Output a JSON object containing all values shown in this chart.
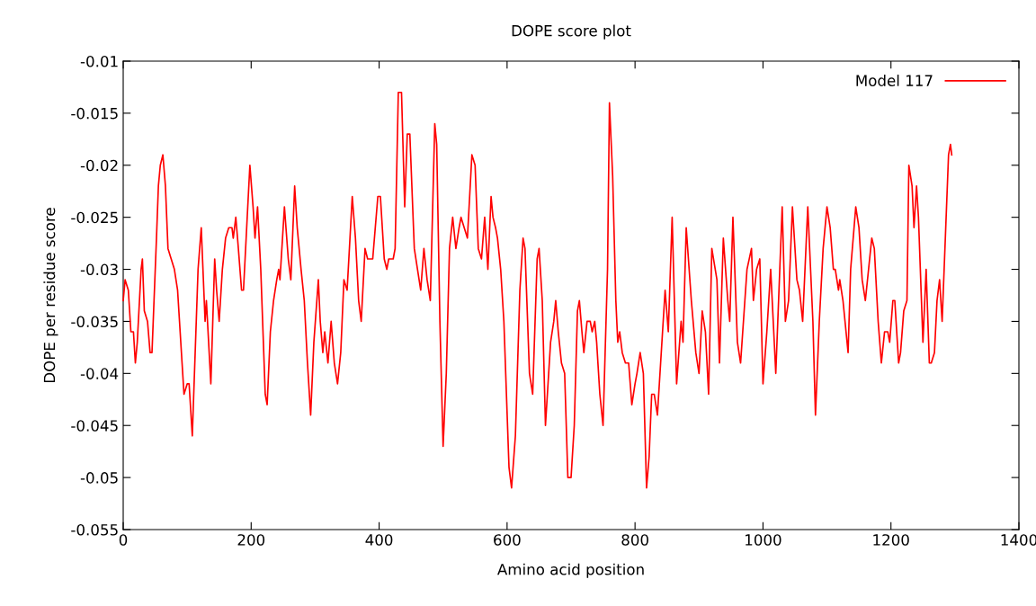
{
  "chart_data": {
    "type": "line",
    "title": "DOPE score plot",
    "xlabel": "Amino acid position",
    "ylabel": "DOPE per residue score",
    "xlim": [
      0,
      1400
    ],
    "xticks": [
      0,
      200,
      400,
      600,
      800,
      1000,
      1200,
      1400
    ],
    "ylim": [
      -0.055,
      -0.01
    ],
    "yticks": [
      -0.055,
      -0.05,
      -0.045,
      -0.04,
      -0.035,
      -0.03,
      -0.025,
      -0.02,
      -0.015,
      -0.01
    ],
    "grid": false,
    "legend": "top right",
    "marker": "none",
    "line_style": "solid",
    "series": [
      {
        "name": "Model 117",
        "color": "#ff0000",
        "x": [
          0,
          3,
          8,
          12,
          16,
          19,
          22,
          28,
          30,
          33,
          38,
          42,
          45,
          52,
          55,
          58,
          62,
          66,
          70,
          75,
          80,
          85,
          92,
          95,
          100,
          103,
          108,
          117,
          122,
          128,
          130,
          137,
          143,
          146,
          150,
          155,
          160,
          165,
          170,
          172,
          176,
          180,
          185,
          188,
          198,
          203,
          206,
          210,
          215,
          222,
          225,
          230,
          235,
          240,
          243,
          245,
          252,
          258,
          262,
          268,
          272,
          278,
          283,
          288,
          293,
          298,
          305,
          308,
          312,
          315,
          320,
          325,
          330,
          335,
          340,
          345,
          350,
          358,
          363,
          368,
          372,
          378,
          382,
          385,
          390,
          398,
          402,
          408,
          412,
          415,
          422,
          425,
          430,
          435,
          440,
          444,
          448,
          455,
          460,
          465,
          470,
          475,
          480,
          487,
          490,
          495,
          500,
          505,
          510,
          515,
          520,
          525,
          528,
          533,
          538,
          545,
          550,
          555,
          560,
          565,
          570,
          575,
          578,
          582,
          585,
          590,
          595,
          603,
          607,
          613,
          620,
          625,
          628,
          635,
          640,
          647,
          650,
          655,
          660,
          668,
          673,
          676,
          680,
          685,
          690,
          695,
          700,
          705,
          710,
          713,
          717,
          720,
          725,
          730,
          733,
          737,
          740,
          745,
          750,
          757,
          760,
          765,
          770,
          773,
          776,
          780,
          785,
          790,
          795,
          800,
          803,
          808,
          813,
          818,
          822,
          826,
          830,
          835,
          843,
          847,
          852,
          858,
          865,
          872,
          875,
          880,
          888,
          895,
          900,
          905,
          910,
          915,
          920,
          928,
          932,
          938,
          945,
          948,
          953,
          960,
          965,
          975,
          982,
          985,
          990,
          995,
          1000,
          1006,
          1012,
          1020,
          1030,
          1035,
          1040,
          1046,
          1053,
          1057,
          1062,
          1070,
          1078,
          1082,
          1088,
          1094,
          1100,
          1105,
          1110,
          1113,
          1118,
          1120,
          1125,
          1133,
          1137,
          1145,
          1150,
          1155,
          1160,
          1165,
          1170,
          1174,
          1180,
          1185,
          1190,
          1195,
          1198,
          1203,
          1206,
          1212,
          1215,
          1220,
          1225,
          1228,
          1233,
          1236,
          1240,
          1243,
          1250,
          1255,
          1260,
          1263,
          1268,
          1272,
          1276,
          1280,
          1290,
          1293,
          1295
        ],
        "values": [
          -0.033,
          -0.031,
          -0.032,
          -0.036,
          -0.036,
          -0.039,
          -0.037,
          -0.03,
          -0.029,
          -0.034,
          -0.035,
          -0.038,
          -0.038,
          -0.027,
          -0.022,
          -0.02,
          -0.019,
          -0.022,
          -0.028,
          -0.029,
          -0.03,
          -0.032,
          -0.039,
          -0.042,
          -0.041,
          -0.041,
          -0.046,
          -0.03,
          -0.026,
          -0.035,
          -0.033,
          -0.041,
          -0.029,
          -0.032,
          -0.035,
          -0.03,
          -0.027,
          -0.026,
          -0.026,
          -0.027,
          -0.025,
          -0.028,
          -0.032,
          -0.032,
          -0.02,
          -0.024,
          -0.027,
          -0.024,
          -0.03,
          -0.042,
          -0.043,
          -0.036,
          -0.033,
          -0.031,
          -0.03,
          -0.031,
          -0.024,
          -0.029,
          -0.031,
          -0.022,
          -0.026,
          -0.03,
          -0.033,
          -0.039,
          -0.044,
          -0.037,
          -0.031,
          -0.035,
          -0.038,
          -0.036,
          -0.039,
          -0.035,
          -0.039,
          -0.041,
          -0.038,
          -0.031,
          -0.032,
          -0.023,
          -0.027,
          -0.033,
          -0.035,
          -0.028,
          -0.029,
          -0.029,
          -0.029,
          -0.023,
          -0.023,
          -0.029,
          -0.03,
          -0.029,
          -0.029,
          -0.028,
          -0.013,
          -0.013,
          -0.024,
          -0.017,
          -0.017,
          -0.028,
          -0.03,
          -0.032,
          -0.028,
          -0.031,
          -0.033,
          -0.016,
          -0.018,
          -0.035,
          -0.047,
          -0.04,
          -0.028,
          -0.025,
          -0.028,
          -0.026,
          -0.025,
          -0.026,
          -0.027,
          -0.019,
          -0.02,
          -0.028,
          -0.029,
          -0.025,
          -0.03,
          -0.023,
          -0.025,
          -0.026,
          -0.027,
          -0.03,
          -0.035,
          -0.049,
          -0.051,
          -0.046,
          -0.032,
          -0.027,
          -0.028,
          -0.04,
          -0.042,
          -0.029,
          -0.028,
          -0.033,
          -0.045,
          -0.037,
          -0.035,
          -0.033,
          -0.036,
          -0.039,
          -0.04,
          -0.05,
          -0.05,
          -0.045,
          -0.034,
          -0.033,
          -0.036,
          -0.038,
          -0.035,
          -0.035,
          -0.036,
          -0.035,
          -0.037,
          -0.042,
          -0.045,
          -0.03,
          -0.014,
          -0.021,
          -0.033,
          -0.037,
          -0.036,
          -0.038,
          -0.039,
          -0.039,
          -0.043,
          -0.041,
          -0.04,
          -0.038,
          -0.04,
          -0.051,
          -0.048,
          -0.042,
          -0.042,
          -0.044,
          -0.036,
          -0.032,
          -0.036,
          -0.025,
          -0.041,
          -0.035,
          -0.037,
          -0.026,
          -0.033,
          -0.038,
          -0.04,
          -0.034,
          -0.036,
          -0.042,
          -0.028,
          -0.031,
          -0.039,
          -0.027,
          -0.033,
          -0.035,
          -0.025,
          -0.037,
          -0.039,
          -0.03,
          -0.028,
          -0.033,
          -0.03,
          -0.029,
          -0.041,
          -0.036,
          -0.03,
          -0.04,
          -0.024,
          -0.035,
          -0.033,
          -0.024,
          -0.031,
          -0.032,
          -0.035,
          -0.024,
          -0.035,
          -0.044,
          -0.035,
          -0.028,
          -0.024,
          -0.026,
          -0.03,
          -0.03,
          -0.032,
          -0.031,
          -0.033,
          -0.038,
          -0.03,
          -0.024,
          -0.026,
          -0.031,
          -0.033,
          -0.03,
          -0.027,
          -0.028,
          -0.035,
          -0.039,
          -0.036,
          -0.036,
          -0.037,
          -0.033,
          -0.033,
          -0.039,
          -0.038,
          -0.034,
          -0.033,
          -0.02,
          -0.022,
          -0.026,
          -0.022,
          -0.025,
          -0.037,
          -0.03,
          -0.039,
          -0.039,
          -0.038,
          -0.033,
          -0.031,
          -0.035,
          -0.019,
          -0.018,
          -0.019
        ]
      }
    ]
  }
}
